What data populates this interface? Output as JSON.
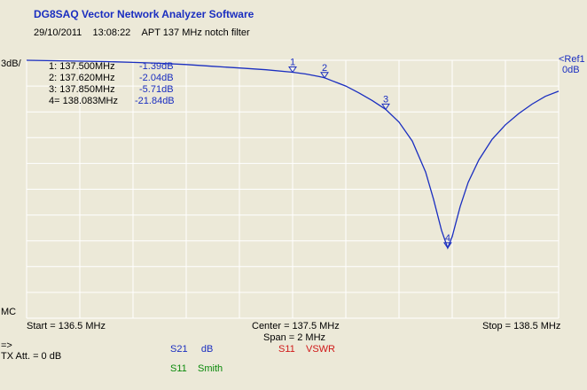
{
  "app": {
    "title": "DG8SAQ Vector Network Analyzer Software",
    "date": "29/10/2011",
    "time": "13:08:22",
    "description": "APT 137 MHz notch filter"
  },
  "chart_data": {
    "type": "line",
    "series": [
      {
        "parameter": "S21",
        "unit": "dB",
        "color": "#1a2ec0",
        "x": [
          136.5,
          136.6,
          136.7,
          136.8,
          136.9,
          137.0,
          137.1,
          137.2,
          137.3,
          137.4,
          137.5,
          137.55,
          137.6,
          137.62,
          137.65,
          137.7,
          137.75,
          137.8,
          137.85,
          137.9,
          137.95,
          138.0,
          138.03,
          138.06,
          138.083,
          138.1,
          138.13,
          138.16,
          138.2,
          138.25,
          138.3,
          138.35,
          138.4,
          138.45,
          138.5
        ],
        "y": [
          -0.0,
          -0.05,
          -0.1,
          -0.15,
          -0.25,
          -0.35,
          -0.5,
          -0.7,
          -0.9,
          -1.1,
          -1.39,
          -1.6,
          -1.9,
          -2.04,
          -2.4,
          -3.0,
          -3.8,
          -4.7,
          -5.71,
          -7.2,
          -9.4,
          -13.0,
          -16.2,
          -19.8,
          -21.84,
          -20.5,
          -17.0,
          -14.2,
          -11.6,
          -9.2,
          -7.5,
          -6.2,
          -5.1,
          -4.2,
          -3.6
        ]
      }
    ],
    "xlim": [
      136.5,
      138.5
    ],
    "ylim": [
      -30,
      0
    ],
    "y_scale": "3dB/",
    "ref_label": "<Ref1",
    "ref_value": "0dB",
    "mc_label": "MC",
    "grid": true,
    "markers": [
      {
        "id": "1",
        "freq_label": "137.500MHz",
        "value_label": "-1.39dB",
        "x": 137.5,
        "y": -1.39
      },
      {
        "id": "2",
        "freq_label": "137.620MHz",
        "value_label": "-2.04dB",
        "x": 137.62,
        "y": -2.04
      },
      {
        "id": "3",
        "freq_label": "137.850MHz",
        "value_label": "-5.71dB",
        "x": 137.85,
        "y": -5.71
      },
      {
        "id": "4",
        "freq_label": "138.083MHz",
        "value_label": "-21.84dB",
        "x": 138.083,
        "y": -21.84
      }
    ],
    "marker_prefix": [
      "1:",
      "2:",
      "3:",
      "4="
    ],
    "start_label": "Start = 136.5 MHz",
    "center_label": "Center = 137.5 MHz",
    "span_label": "Span = 2 MHz",
    "stop_label": "Stop = 138.5 MHz"
  },
  "status": {
    "prompt": "=>",
    "tx_att": "TX Att.  = 0 dB"
  },
  "traces": [
    {
      "param": "S21",
      "format": "dB",
      "color": "#1a2ec0"
    },
    {
      "param": "S11",
      "format": "VSWR",
      "color": "#d01818"
    },
    {
      "param": "S11",
      "format": "Smith",
      "color": "#0a8a0a"
    }
  ]
}
